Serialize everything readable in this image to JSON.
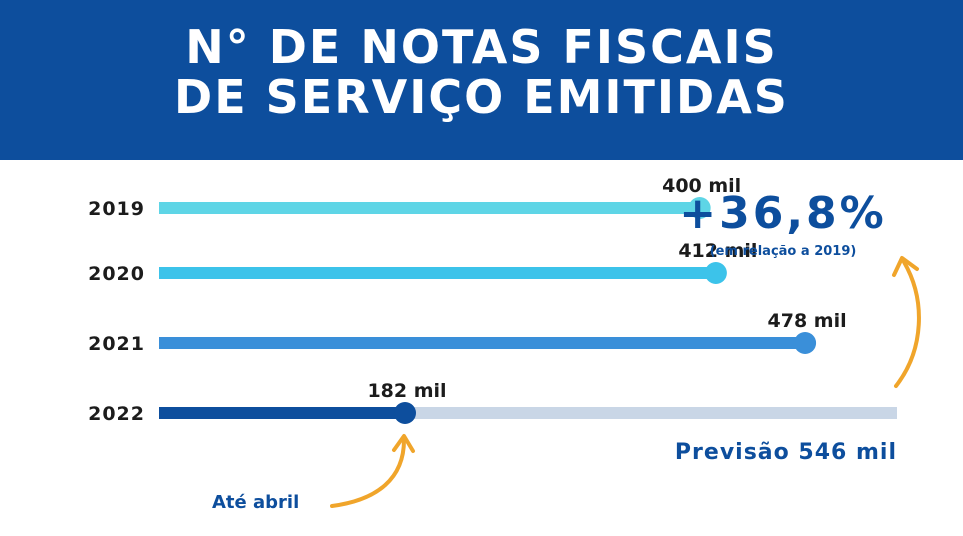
{
  "title": {
    "line1": "N° DE NOTAS FISCAIS",
    "line2": "DE SERVIÇO EMITIDAS"
  },
  "colors": {
    "header_bg": "#0d4e9d",
    "accent_blue": "#0d4e9d",
    "arrow_orange": "#f0a52b",
    "forecast_track": "#c9d6e6",
    "bars": [
      "#5ed5e6",
      "#3cc3ea",
      "#3a8fd9",
      "#0d4e9d"
    ]
  },
  "chart_data": {
    "type": "bar",
    "orientation": "horizontal",
    "categories": [
      "2019",
      "2020",
      "2021",
      "2022"
    ],
    "values": [
      400,
      412,
      478,
      182
    ],
    "value_labels": [
      "400 mil",
      "412 mil",
      "478 mil",
      "182 mil"
    ],
    "forecast": {
      "category": "2022",
      "value": 546,
      "label": "Previsão 546 mil"
    },
    "xlim": [
      0,
      546
    ],
    "grid": false
  },
  "annotations": {
    "growth_value": "+36,8%",
    "growth_note": "(em relação a 2019)",
    "partial_note": "Até abril"
  },
  "icons": [
    "curved-arrow-icon",
    "curved-arrow-icon"
  ]
}
